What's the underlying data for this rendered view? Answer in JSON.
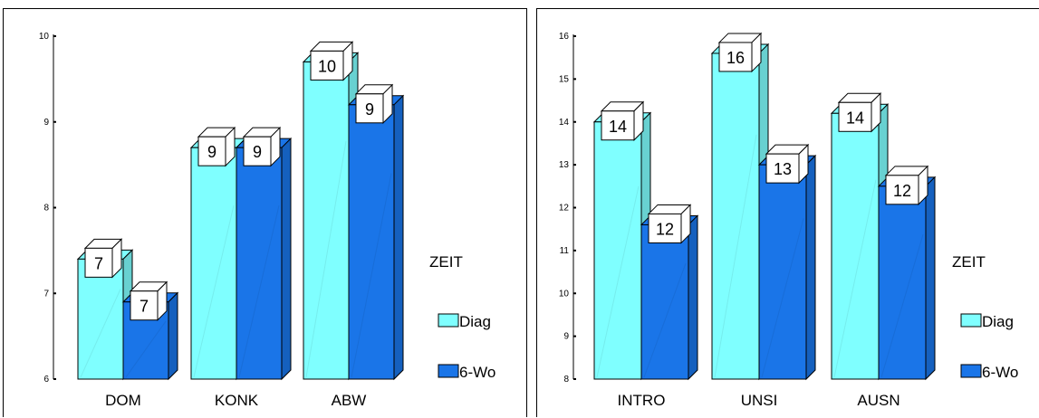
{
  "chart_data": [
    {
      "type": "bar",
      "categories": [
        "DOM",
        "KONK",
        "ABW"
      ],
      "series": [
        {
          "name": "Diag",
          "values": [
            7.4,
            8.7,
            9.7
          ],
          "labels": [
            "7",
            "9",
            "10"
          ],
          "color": "#7fffff"
        },
        {
          "name": "6-Wo",
          "values": [
            6.9,
            8.7,
            9.2
          ],
          "labels": [
            "7",
            "9",
            "9"
          ],
          "color": "#1a75e8"
        }
      ],
      "ylim": [
        6,
        10
      ],
      "yticks": [
        6,
        7,
        8,
        9,
        10
      ],
      "legend_title": "ZEIT",
      "legend_position": "right"
    },
    {
      "type": "bar",
      "categories": [
        "INTRO",
        "UNSI",
        "AUSN"
      ],
      "series": [
        {
          "name": "Diag",
          "values": [
            14.0,
            15.6,
            14.2
          ],
          "labels": [
            "14",
            "16",
            "14"
          ],
          "color": "#7fffff"
        },
        {
          "name": "6-Wo",
          "values": [
            11.6,
            13.0,
            12.5
          ],
          "labels": [
            "12",
            "13",
            "12"
          ],
          "color": "#1a75e8"
        }
      ],
      "ylim": [
        8,
        16
      ],
      "yticks": [
        8,
        9,
        10,
        11,
        12,
        13,
        14,
        15,
        16
      ],
      "legend_title": "ZEIT",
      "legend_position": "right"
    }
  ]
}
